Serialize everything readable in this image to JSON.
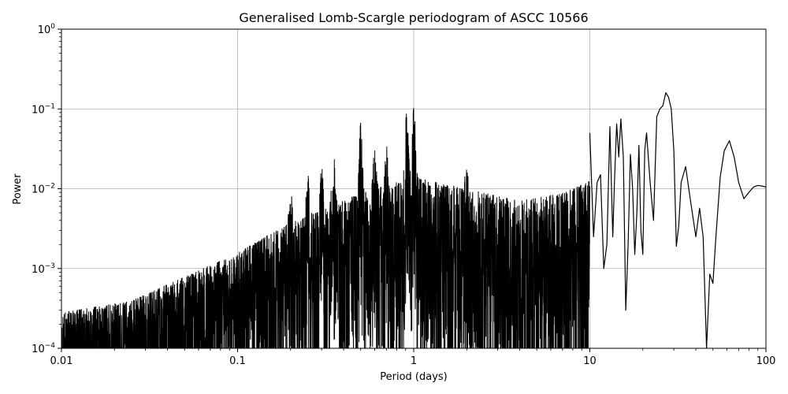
{
  "chart_data": {
    "type": "line",
    "title": "Generalised Lomb-Scargle periodogram of ASCC 10566",
    "xlabel": "Period (days)",
    "ylabel": "Power",
    "x_scale": "log",
    "y_scale": "log",
    "xlim": [
      0.01,
      100
    ],
    "ylim": [
      0.0001,
      1
    ],
    "grid": true,
    "x_ticks": [
      {
        "value": 0.01,
        "label": "0.01"
      },
      {
        "value": 0.1,
        "label": "0.1"
      },
      {
        "value": 1,
        "label": "1"
      },
      {
        "value": 10,
        "label": "10"
      },
      {
        "value": 100,
        "label": "100"
      }
    ],
    "y_ticks": [
      {
        "value": 0.0001,
        "base": "10",
        "exp": "−4"
      },
      {
        "value": 0.001,
        "base": "10",
        "exp": "−3"
      },
      {
        "value": 0.01,
        "base": "10",
        "exp": "−2"
      },
      {
        "value": 0.1,
        "base": "10",
        "exp": "−1"
      },
      {
        "value": 1,
        "base": "10",
        "exp": "0"
      }
    ],
    "line_color": "#000000",
    "series": [
      {
        "x": [
          10.0,
          10.5,
          11.0,
          11.5,
          12.0,
          12.5,
          13.0,
          13.5,
          13.8,
          14.2,
          14.6,
          15.0,
          15.5,
          16.0,
          16.5,
          17.0,
          17.5,
          18.0,
          18.5,
          19.0,
          19.5,
          20.0,
          20.5,
          21.0,
          22.0,
          23.0,
          24.0,
          25.0,
          26.0,
          27.0,
          28.0,
          29.0,
          30.0,
          31.0,
          32.0,
          33.0,
          35.0,
          37.0,
          40.0,
          42.0,
          44.0,
          46.0,
          48.0,
          50.0,
          52.0,
          55.0,
          58.0,
          62.0,
          66.0,
          70.0,
          75.0,
          80.0,
          85.0,
          90.0,
          95.0,
          100.0
        ],
        "y": [
          0.05,
          0.0025,
          0.012,
          0.015,
          0.001,
          0.002,
          0.06,
          0.0025,
          0.012,
          0.065,
          0.025,
          0.075,
          0.025,
          0.0003,
          0.002,
          0.027,
          0.01,
          0.0015,
          0.005,
          0.035,
          0.003,
          0.0015,
          0.03,
          0.05,
          0.012,
          0.004,
          0.08,
          0.1,
          0.11,
          0.16,
          0.14,
          0.1,
          0.03,
          0.0019,
          0.0035,
          0.012,
          0.019,
          0.008,
          0.0025,
          0.0057,
          0.0025,
          0.0001,
          0.00085,
          0.00065,
          0.0025,
          0.014,
          0.03,
          0.04,
          0.025,
          0.012,
          0.0075,
          0.009,
          0.0105,
          0.011,
          0.0108,
          0.0105
        ]
      }
    ]
  }
}
